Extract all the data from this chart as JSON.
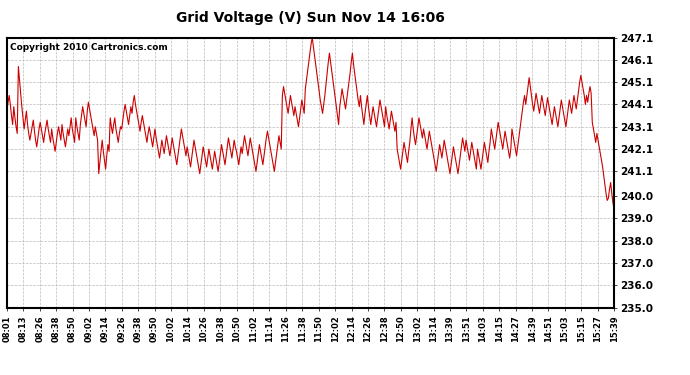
{
  "title": "Grid Voltage (V) Sun Nov 14 16:06",
  "copyright": "Copyright 2010 Cartronics.com",
  "line_color": "#cc0000",
  "background_color": "#ffffff",
  "grid_color": "#bbbbbb",
  "ylim": [
    235.0,
    247.1
  ],
  "yticks": [
    235.0,
    236.0,
    237.0,
    238.0,
    239.0,
    240.0,
    241.1,
    242.1,
    243.1,
    244.1,
    245.1,
    246.1,
    247.1
  ],
  "xtick_labels": [
    "08:01",
    "08:13",
    "08:26",
    "08:38",
    "08:50",
    "09:02",
    "09:14",
    "09:26",
    "09:38",
    "09:50",
    "10:02",
    "10:14",
    "10:26",
    "10:38",
    "10:50",
    "11:02",
    "11:14",
    "11:26",
    "11:38",
    "11:50",
    "12:02",
    "12:14",
    "12:26",
    "12:38",
    "12:50",
    "13:02",
    "13:14",
    "13:39",
    "13:51",
    "14:03",
    "14:15",
    "14:27",
    "14:39",
    "14:51",
    "15:03",
    "15:15",
    "15:27",
    "15:39"
  ],
  "voltage_data": [
    243.8,
    244.2,
    244.5,
    244.1,
    243.6,
    243.2,
    244.0,
    243.5,
    243.1,
    242.8,
    245.8,
    245.2,
    244.6,
    244.0,
    243.5,
    243.0,
    243.4,
    243.8,
    243.2,
    242.8,
    242.5,
    242.8,
    243.1,
    243.4,
    242.9,
    242.5,
    242.2,
    242.6,
    243.0,
    243.3,
    243.0,
    242.7,
    242.4,
    242.8,
    243.1,
    243.4,
    243.0,
    242.7,
    242.4,
    243.0,
    242.6,
    242.3,
    242.0,
    242.4,
    242.8,
    243.1,
    242.8,
    242.5,
    243.2,
    242.8,
    242.5,
    242.2,
    242.6,
    243.0,
    242.7,
    243.1,
    243.5,
    243.0,
    242.7,
    242.4,
    243.5,
    243.1,
    242.8,
    242.5,
    243.2,
    243.6,
    244.0,
    243.7,
    243.4,
    243.1,
    243.8,
    244.2,
    243.9,
    243.6,
    243.3,
    243.0,
    242.7,
    243.1,
    242.8,
    242.5,
    241.0,
    241.5,
    242.0,
    242.5,
    242.0,
    241.6,
    241.2,
    241.8,
    242.3,
    242.0,
    243.5,
    243.1,
    242.8,
    243.2,
    243.5,
    243.0,
    242.7,
    242.4,
    242.8,
    243.1,
    243.0,
    243.4,
    243.8,
    244.1,
    243.8,
    243.5,
    243.2,
    243.6,
    244.0,
    243.7,
    244.2,
    244.5,
    244.1,
    243.8,
    243.5,
    243.2,
    242.9,
    243.3,
    243.6,
    243.3,
    243.0,
    242.7,
    242.4,
    242.8,
    243.1,
    242.8,
    242.5,
    242.2,
    242.6,
    243.0,
    242.6,
    242.3,
    242.0,
    241.7,
    242.1,
    242.5,
    242.2,
    241.9,
    242.3,
    242.7,
    242.4,
    242.1,
    241.8,
    242.2,
    242.6,
    242.3,
    242.0,
    241.7,
    241.4,
    241.8,
    242.2,
    242.6,
    243.0,
    242.7,
    242.4,
    242.1,
    241.8,
    242.2,
    241.9,
    241.6,
    241.3,
    241.7,
    242.1,
    242.5,
    242.2,
    241.9,
    241.6,
    241.3,
    241.0,
    241.4,
    241.8,
    242.2,
    241.9,
    241.6,
    241.3,
    241.7,
    242.1,
    241.8,
    241.5,
    241.2,
    241.6,
    242.0,
    241.7,
    241.4,
    241.1,
    241.5,
    241.9,
    242.3,
    242.0,
    241.7,
    241.4,
    241.8,
    242.2,
    242.6,
    242.3,
    242.0,
    241.7,
    242.1,
    242.5,
    242.2,
    242.0,
    241.7,
    241.4,
    241.8,
    242.2,
    241.9,
    242.3,
    242.7,
    242.4,
    242.1,
    241.8,
    242.2,
    242.6,
    242.3,
    242.0,
    241.7,
    241.4,
    241.1,
    241.5,
    241.9,
    242.3,
    242.0,
    241.7,
    241.4,
    241.8,
    242.2,
    242.6,
    242.9,
    242.6,
    242.3,
    242.0,
    241.7,
    241.4,
    241.1,
    241.5,
    241.9,
    242.3,
    242.7,
    242.4,
    242.1,
    244.5,
    244.9,
    244.6,
    244.3,
    244.0,
    243.7,
    244.1,
    244.5,
    244.2,
    243.9,
    243.6,
    244.0,
    243.7,
    243.4,
    243.1,
    243.5,
    243.9,
    244.3,
    244.0,
    243.7,
    244.8,
    245.2,
    245.6,
    246.0,
    246.4,
    246.8,
    247.1,
    246.7,
    246.3,
    245.9,
    245.5,
    245.1,
    244.7,
    244.3,
    244.0,
    243.7,
    244.1,
    244.5,
    245.0,
    245.5,
    246.0,
    246.4,
    246.0,
    245.6,
    245.2,
    244.8,
    244.4,
    244.0,
    243.6,
    243.2,
    244.0,
    244.4,
    244.8,
    244.5,
    244.2,
    243.9,
    244.3,
    244.7,
    245.1,
    245.5,
    246.0,
    246.4,
    245.9,
    245.5,
    245.1,
    244.7,
    244.3,
    244.0,
    244.5,
    244.0,
    243.6,
    243.2,
    243.7,
    244.1,
    244.5,
    244.0,
    243.6,
    243.2,
    243.6,
    244.0,
    243.7,
    243.4,
    243.1,
    243.5,
    243.9,
    244.3,
    244.0,
    243.7,
    243.4,
    243.1,
    244.0,
    243.6,
    243.3,
    243.0,
    243.4,
    243.8,
    243.5,
    243.2,
    242.9,
    243.3,
    242.1,
    241.8,
    241.5,
    241.2,
    241.6,
    242.0,
    242.4,
    242.1,
    241.8,
    241.5,
    242.0,
    242.4,
    243.0,
    243.5,
    243.0,
    242.6,
    242.3,
    242.7,
    243.1,
    243.5,
    243.2,
    242.9,
    242.6,
    243.0,
    242.7,
    242.4,
    242.1,
    242.5,
    242.9,
    242.6,
    242.3,
    242.0,
    241.7,
    241.4,
    241.1,
    241.5,
    241.9,
    242.3,
    242.0,
    241.7,
    242.1,
    242.5,
    242.2,
    241.9,
    241.6,
    241.3,
    241.0,
    241.4,
    241.8,
    242.2,
    241.9,
    241.6,
    241.3,
    241.0,
    241.4,
    241.8,
    242.2,
    242.6,
    242.3,
    242.0,
    242.5,
    242.2,
    241.9,
    241.6,
    242.0,
    242.4,
    242.1,
    241.8,
    241.5,
    241.2,
    242.1,
    241.8,
    241.5,
    241.2,
    241.6,
    242.0,
    242.4,
    242.1,
    241.8,
    241.5,
    242.0,
    242.4,
    243.0,
    242.7,
    242.4,
    242.1,
    242.5,
    242.9,
    243.3,
    243.0,
    242.7,
    242.4,
    242.1,
    242.5,
    242.9,
    242.6,
    242.3,
    242.0,
    241.7,
    242.1,
    243.0,
    242.7,
    242.4,
    242.1,
    241.8,
    242.2,
    242.6,
    243.0,
    243.4,
    243.8,
    244.2,
    244.5,
    244.1,
    244.5,
    244.9,
    245.3,
    244.9,
    244.5,
    244.1,
    243.8,
    244.2,
    244.6,
    244.3,
    244.0,
    243.7,
    244.1,
    244.5,
    244.2,
    243.9,
    243.6,
    244.0,
    244.4,
    244.1,
    243.8,
    243.5,
    243.2,
    243.6,
    244.0,
    243.7,
    243.4,
    243.1,
    243.5,
    243.9,
    244.3,
    244.0,
    243.7,
    243.4,
    243.1,
    243.5,
    243.9,
    244.3,
    244.0,
    243.7,
    244.1,
    244.5,
    244.2,
    243.9,
    244.3,
    244.7,
    245.1,
    245.4,
    245.1,
    244.8,
    244.5,
    244.1,
    244.5,
    244.2,
    244.6,
    244.9,
    244.6,
    243.3,
    243.0,
    242.7,
    242.4,
    242.8,
    242.5,
    242.2,
    241.9,
    241.6,
    241.3,
    240.9,
    240.5,
    240.1,
    239.8,
    239.9,
    240.3,
    240.6,
    240.1,
    239.7,
    239.4
  ]
}
